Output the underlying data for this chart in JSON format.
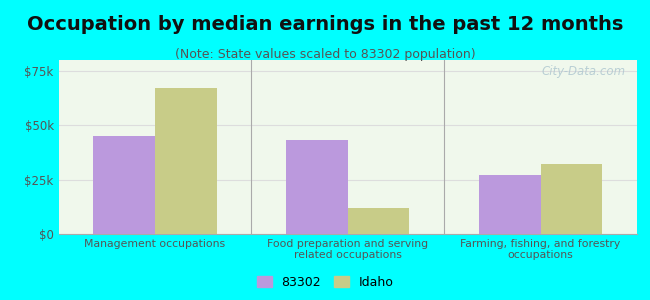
{
  "title": "Occupation by median earnings in the past 12 months",
  "subtitle": "(Note: State values scaled to 83302 population)",
  "categories": [
    "Management occupations",
    "Food preparation and serving\nrelated occupations",
    "Farming, fishing, and forestry\noccupations"
  ],
  "series_83302": [
    45000,
    43000,
    27000
  ],
  "series_idaho": [
    67000,
    12000,
    32000
  ],
  "color_83302": "#bb99dd",
  "color_idaho": "#c8cc88",
  "ylim": [
    0,
    80000
  ],
  "yticks": [
    0,
    25000,
    50000,
    75000
  ],
  "ytick_labels": [
    "$0",
    "$25k",
    "$50k",
    "$75k"
  ],
  "bg_color": "#00ffff",
  "plot_bg": "#e8f5e0",
  "watermark": "City-Data.com",
  "bar_width": 0.32,
  "title_fontsize": 14,
  "subtitle_fontsize": 9,
  "legend_labels": [
    "83302",
    "Idaho"
  ],
  "sep_color": "#aaaaaa",
  "grid_color": "#dddddd"
}
